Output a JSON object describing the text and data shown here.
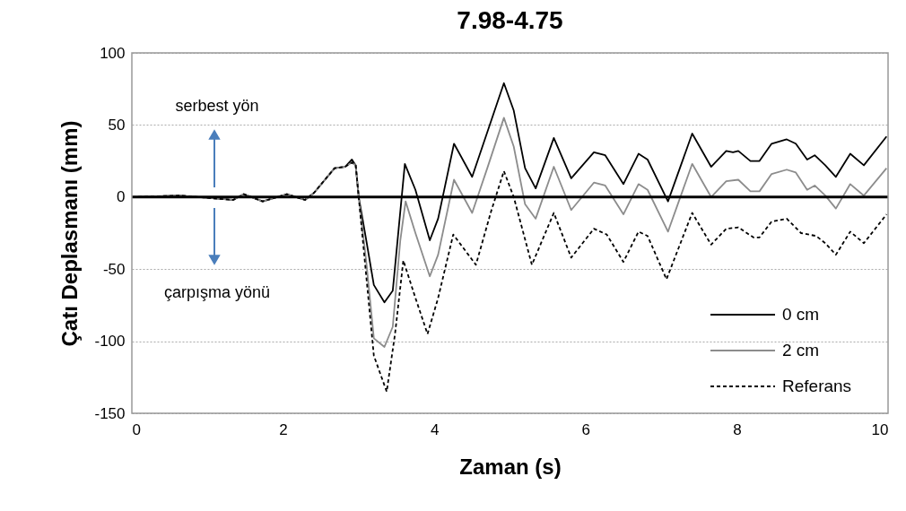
{
  "chart_data": {
    "type": "line",
    "title": "7.98-4.75",
    "xlabel": "Zaman (s)",
    "ylabel": "Çatı Deplasmanı (mm)",
    "xlim": [
      0,
      10
    ],
    "xticks": [
      0,
      2,
      4,
      6,
      8,
      10
    ],
    "ylim": [
      -150,
      100
    ],
    "yticks": [
      -150,
      -100,
      -50,
      0,
      50,
      100
    ],
    "grid": "y",
    "legend": "bottom right",
    "marker": "none",
    "ref_lines": [
      {
        "axis": "y",
        "value": 0,
        "color": "#000000"
      }
    ],
    "annotations": [
      "serbest yön",
      "çarpışma yönü"
    ],
    "series": [
      {
        "name": "0 cm",
        "color": "#000000",
        "line_style": "solid",
        "x": [
          0,
          0.63,
          1.34,
          1.48,
          1.73,
          2.05,
          2.29,
          2.41,
          2.68,
          2.82,
          2.91,
          2.96,
          3.0,
          3.1,
          3.2,
          3.34,
          3.45,
          3.55,
          3.61,
          3.75,
          3.94,
          4.05,
          4.26,
          4.5,
          4.7,
          4.92,
          5.05,
          5.2,
          5.34,
          5.58,
          5.81,
          6.11,
          6.26,
          6.5,
          6.7,
          6.82,
          7.09,
          7.41,
          7.66,
          7.86,
          7.95,
          8.02,
          8.18,
          8.3,
          8.46,
          8.66,
          8.78,
          8.93,
          9.03,
          9.17,
          9.31,
          9.5,
          9.68,
          9.98
        ],
        "values": [
          0,
          1,
          -2,
          2,
          -3,
          2,
          -2,
          3,
          20,
          21,
          26,
          22,
          0,
          -30,
          -61,
          -73,
          -65,
          -10,
          23,
          5,
          -30,
          -15,
          37,
          14,
          45,
          79,
          60,
          20,
          6,
          41,
          13,
          31,
          29,
          9,
          30,
          26,
          -3,
          44,
          21,
          32,
          31,
          32,
          25,
          25,
          37,
          40,
          37,
          26,
          29,
          22,
          14,
          30,
          22,
          42
        ]
      },
      {
        "name": "2 cm",
        "color": "#8c8c8c",
        "line_style": "solid",
        "x": [
          0,
          0.63,
          1.34,
          1.48,
          1.73,
          2.05,
          2.29,
          2.41,
          2.68,
          2.82,
          2.91,
          2.96,
          3.0,
          3.1,
          3.2,
          3.34,
          3.45,
          3.55,
          3.62,
          3.75,
          3.94,
          4.05,
          4.26,
          4.5,
          4.7,
          4.92,
          5.05,
          5.2,
          5.34,
          5.58,
          5.81,
          6.11,
          6.26,
          6.5,
          6.7,
          6.82,
          7.09,
          7.41,
          7.66,
          7.86,
          8.02,
          8.18,
          8.3,
          8.46,
          8.66,
          8.78,
          8.93,
          9.03,
          9.17,
          9.31,
          9.5,
          9.68,
          9.98
        ],
        "values": [
          0,
          1,
          -2,
          2,
          -3,
          2,
          -2,
          3,
          20,
          21,
          24,
          22,
          0,
          -45,
          -98,
          -104,
          -90,
          -30,
          -3,
          -25,
          -55,
          -40,
          12,
          -11,
          20,
          55,
          35,
          -5,
          -15,
          21,
          -9,
          10,
          8,
          -12,
          9,
          5,
          -24,
          23,
          0,
          11,
          12,
          4,
          4,
          16,
          19,
          17,
          5,
          8,
          1,
          -8,
          9,
          1,
          20
        ]
      },
      {
        "name": "Referans",
        "color": "#000000",
        "line_style": "dashed",
        "x": [
          0,
          0.63,
          1.34,
          1.48,
          1.73,
          2.05,
          2.29,
          2.41,
          2.68,
          2.82,
          2.91,
          2.96,
          3.0,
          3.1,
          3.2,
          3.37,
          3.48,
          3.59,
          3.75,
          3.91,
          4.05,
          4.25,
          4.55,
          4.75,
          4.92,
          5.05,
          5.29,
          5.58,
          5.81,
          6.11,
          6.28,
          6.5,
          6.7,
          6.82,
          7.07,
          7.41,
          7.66,
          7.86,
          8.02,
          8.22,
          8.3,
          8.46,
          8.66,
          8.85,
          9.05,
          9.17,
          9.31,
          9.5,
          9.68,
          9.98
        ],
        "values": [
          0,
          1,
          -2,
          2,
          -3,
          2,
          -2,
          3,
          20,
          21,
          24,
          22,
          0,
          -55,
          -110,
          -135,
          -95,
          -44,
          -70,
          -95,
          -70,
          -26,
          -47,
          -10,
          18,
          0,
          -47,
          -11,
          -42,
          -22,
          -26,
          -45,
          -24,
          -27,
          -57,
          -11,
          -33,
          -22,
          -21,
          -28,
          -28,
          -17,
          -15,
          -25,
          -27,
          -32,
          -40,
          -24,
          -32,
          -12
        ]
      }
    ]
  }
}
